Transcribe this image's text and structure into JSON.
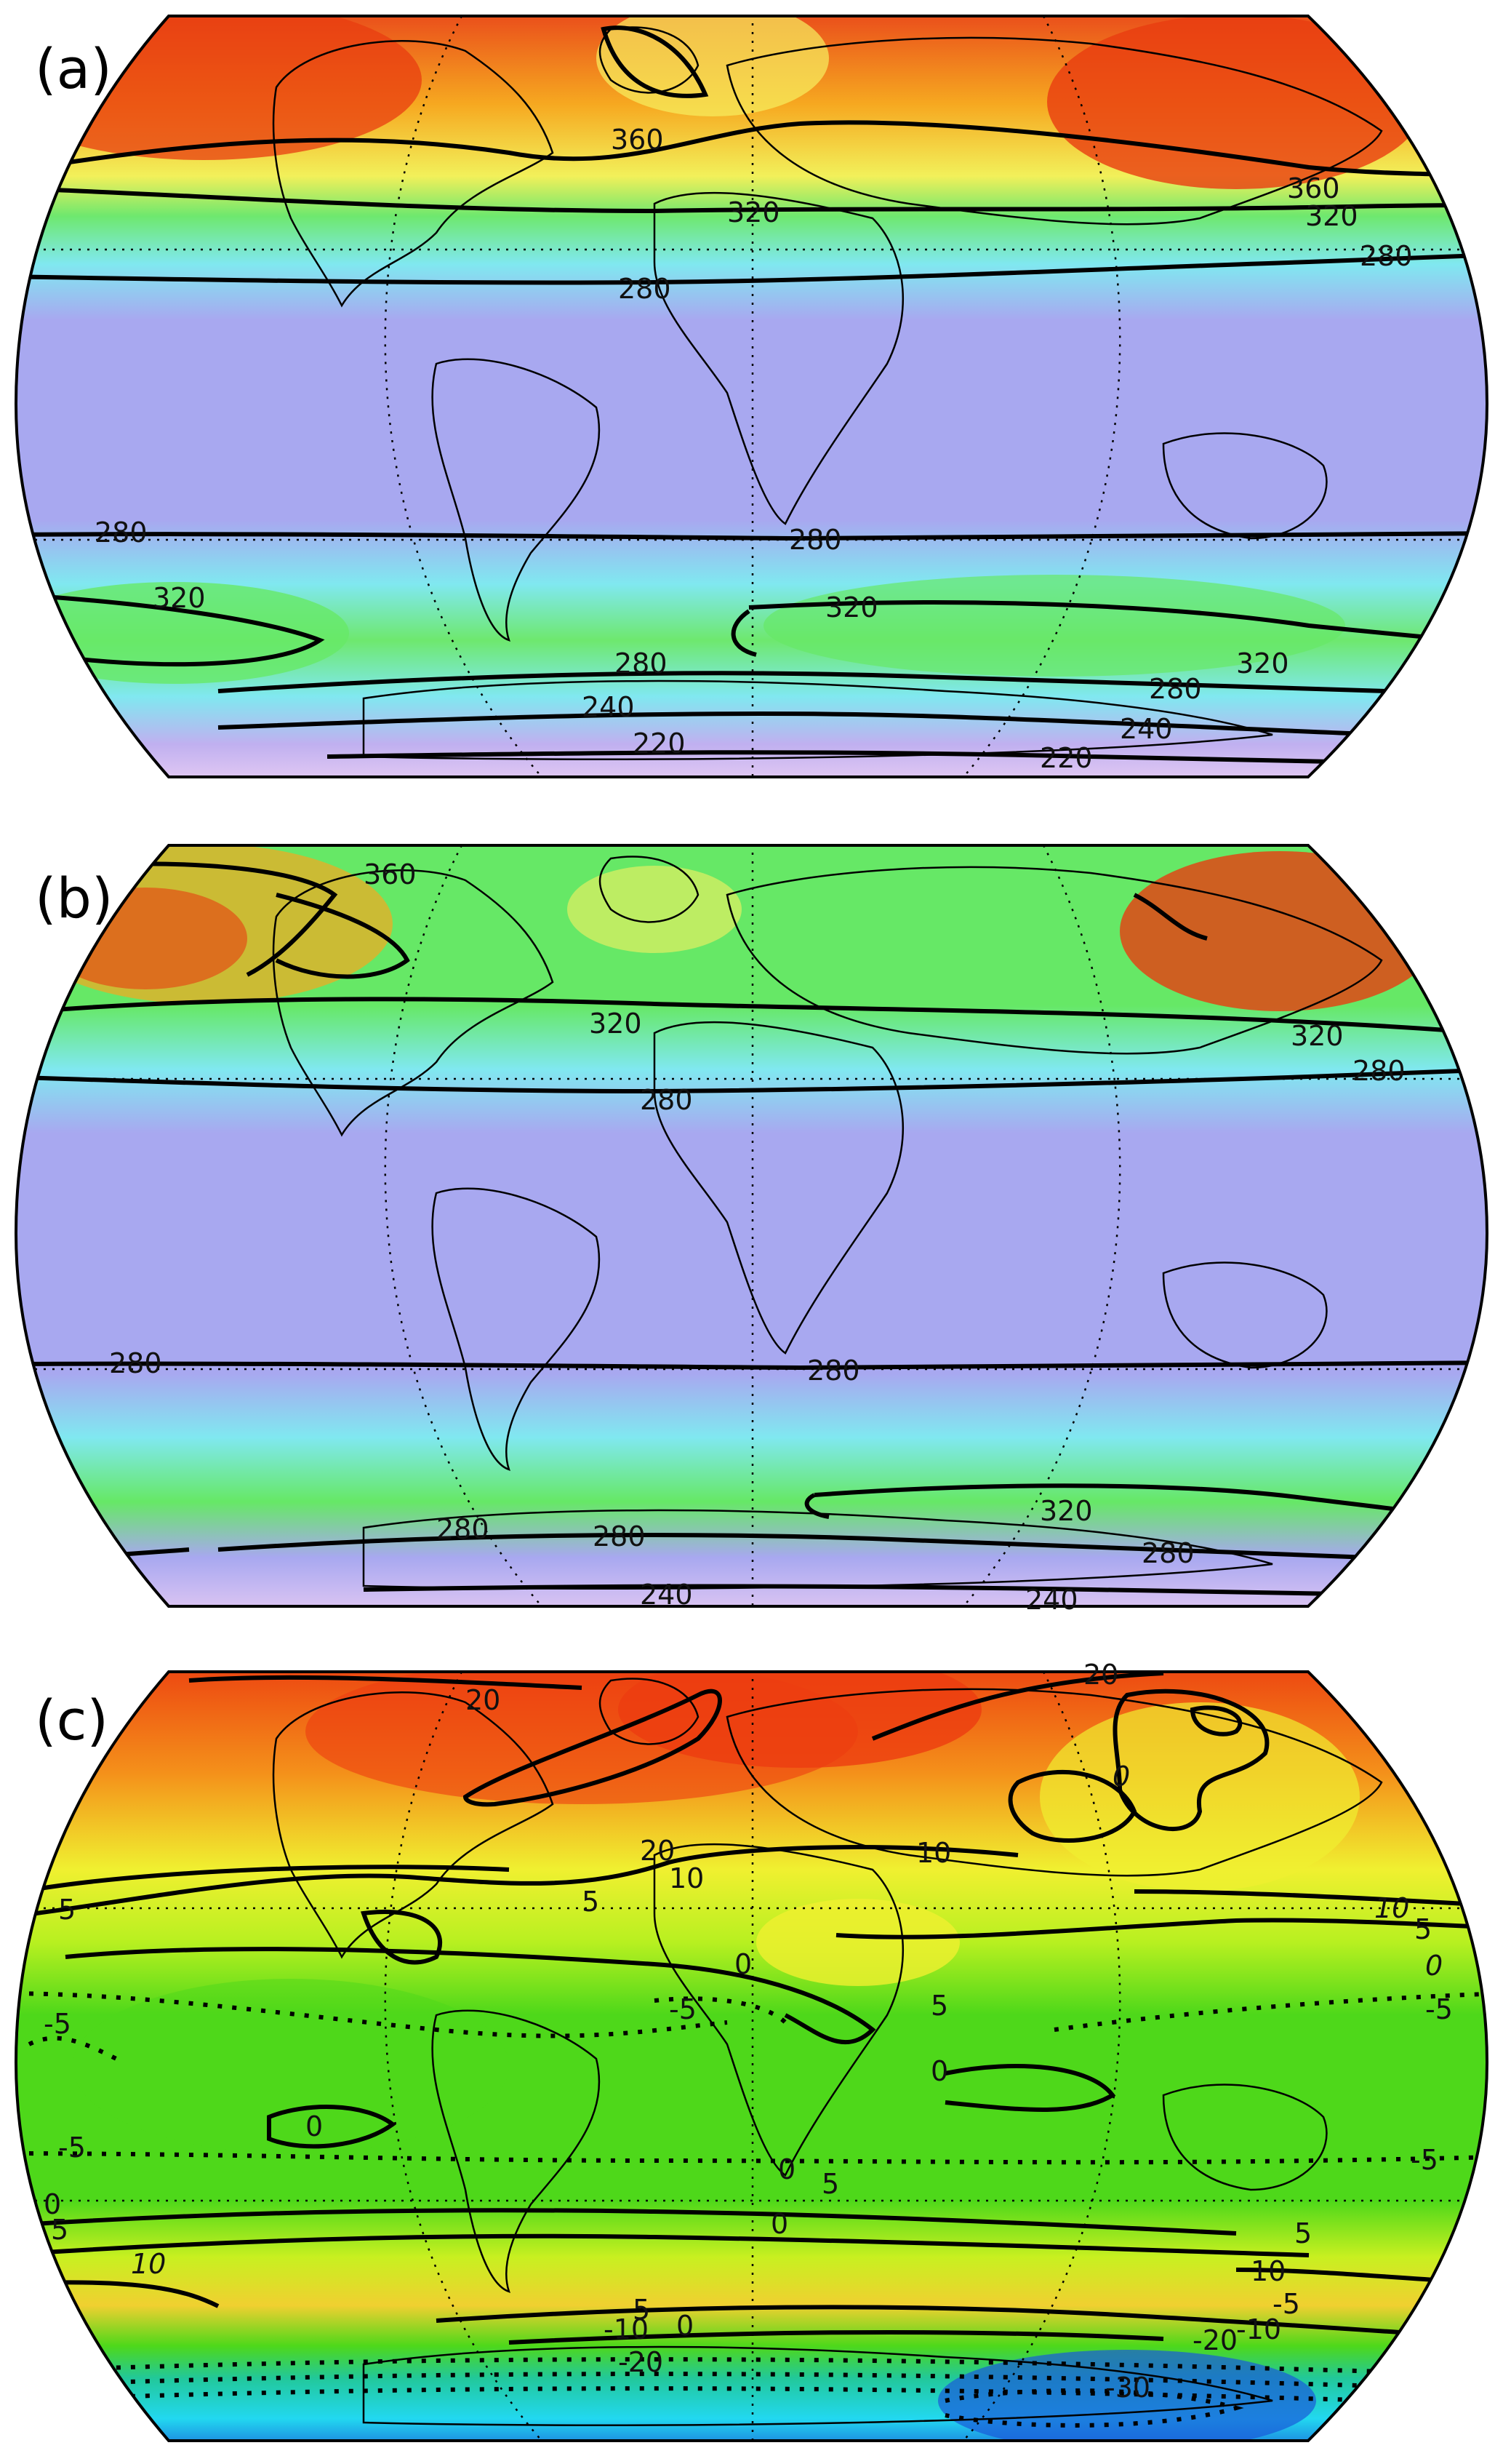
{
  "panels": [
    {
      "letter": "(a)",
      "scheme": "temp",
      "labels": [
        "360",
        "360",
        "320",
        "320",
        "280",
        "280",
        "280",
        "280",
        "320",
        "320",
        "320",
        "280",
        "280",
        "240",
        "240",
        "220",
        "220"
      ]
    },
    {
      "letter": "(b)",
      "scheme": "temp",
      "labels": [
        "360",
        "320",
        "320",
        "280",
        "280",
        "280",
        "280",
        "280",
        "320",
        "280",
        "280",
        "240",
        "240"
      ]
    },
    {
      "letter": "(c)",
      "scheme": "anom",
      "labels": [
        "20",
        "20",
        "20",
        "10",
        "10",
        "10",
        "5",
        "5",
        "5",
        "5",
        "5",
        "0",
        "0",
        "0",
        "0",
        "0",
        "0",
        "-5",
        "-5",
        "-5",
        "-5",
        "-5",
        "0",
        "0",
        "5",
        "5",
        "10",
        "10",
        "5",
        "-5",
        "0",
        "-10",
        "-10",
        "-20",
        "-20",
        "-30"
      ]
    }
  ],
  "colors": {
    "temp_low": "#f4d6f4",
    "temp_mid": "#a8a8f0",
    "temp_cyan": "#7fe8f0",
    "temp_green": "#66e866",
    "temp_yellow": "#f6f060",
    "temp_red": "#e83c10",
    "anom_blue": "#1a5ad8",
    "anom_cyan": "#22d8f0",
    "anom_green": "#4ed81a",
    "anom_yellow": "#f0f030",
    "anom_red": "#ec3c10"
  }
}
